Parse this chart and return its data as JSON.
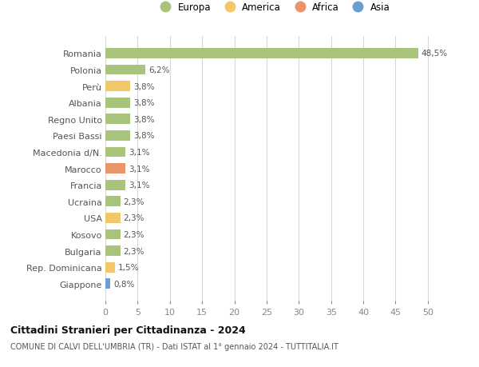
{
  "countries": [
    "Romania",
    "Polonia",
    "Perù",
    "Albania",
    "Regno Unito",
    "Paesi Bassi",
    "Macedonia d/N.",
    "Marocco",
    "Francia",
    "Ucraina",
    "USA",
    "Kosovo",
    "Bulgaria",
    "Rep. Dominicana",
    "Giappone"
  ],
  "values": [
    48.5,
    6.2,
    3.8,
    3.8,
    3.8,
    3.8,
    3.1,
    3.1,
    3.1,
    2.3,
    2.3,
    2.3,
    2.3,
    1.5,
    0.8
  ],
  "labels": [
    "48,5%",
    "6,2%",
    "3,8%",
    "3,8%",
    "3,8%",
    "3,8%",
    "3,1%",
    "3,1%",
    "3,1%",
    "2,3%",
    "2,3%",
    "2,3%",
    "2,3%",
    "1,5%",
    "0,8%"
  ],
  "continents": [
    "Europa",
    "Europa",
    "America",
    "Europa",
    "Europa",
    "Europa",
    "Europa",
    "Africa",
    "Europa",
    "Europa",
    "America",
    "Europa",
    "Europa",
    "America",
    "Asia"
  ],
  "colors": {
    "Europa": "#a8c47a",
    "America": "#f2c76a",
    "Africa": "#e8956a",
    "Asia": "#6a9fd0"
  },
  "legend_order": [
    "Europa",
    "America",
    "Africa",
    "Asia"
  ],
  "title1": "Cittadini Stranieri per Cittadinanza - 2024",
  "title2": "COMUNE DI CALVI DELL'UMBRIA (TR) - Dati ISTAT al 1° gennaio 2024 - TUTTITALIA.IT",
  "xlim": [
    0,
    52
  ],
  "xticks": [
    0,
    5,
    10,
    15,
    20,
    25,
    30,
    35,
    40,
    45,
    50
  ],
  "background_color": "#ffffff",
  "grid_color": "#d8d8d8"
}
